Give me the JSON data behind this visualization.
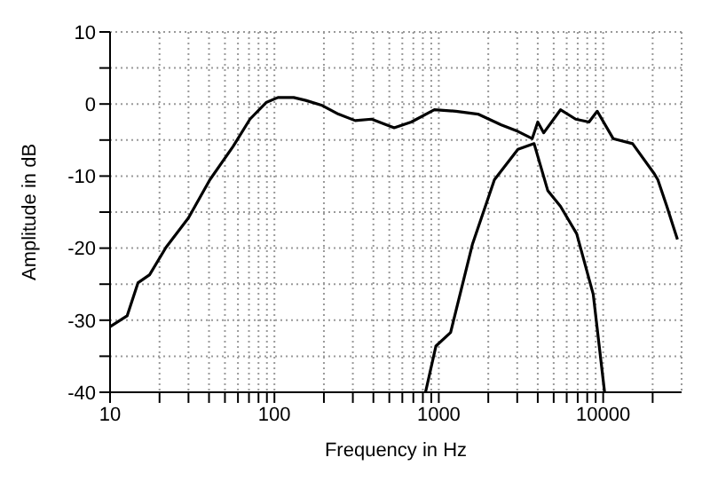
{
  "chart_data": {
    "type": "line",
    "xlabel": "Frequency in Hz",
    "ylabel": "Amplitude in dB",
    "log": "x",
    "grid": true,
    "marker": "none",
    "line_style": "solid",
    "xlim": [
      10,
      30000
    ],
    "ylim": [
      -40,
      10
    ],
    "xticks": [
      10,
      {
        "value": 20,
        "label": null
      },
      {
        "value": 30,
        "label": null
      },
      {
        "value": 40,
        "label": null
      },
      {
        "value": 50,
        "label": null
      },
      {
        "value": 60,
        "label": null
      },
      {
        "value": 70,
        "label": null
      },
      {
        "value": 80,
        "label": null
      },
      {
        "value": 90,
        "label": null
      },
      100,
      {
        "value": 200,
        "label": null
      },
      {
        "value": 300,
        "label": null
      },
      {
        "value": 400,
        "label": null
      },
      {
        "value": 500,
        "label": null
      },
      {
        "value": 600,
        "label": null
      },
      {
        "value": 700,
        "label": null
      },
      {
        "value": 800,
        "label": null
      },
      {
        "value": 900,
        "label": null
      },
      1000,
      {
        "value": 2000,
        "label": null
      },
      {
        "value": 3000,
        "label": null
      },
      {
        "value": 4000,
        "label": null
      },
      {
        "value": 5000,
        "label": null
      },
      {
        "value": 6000,
        "label": null
      },
      {
        "value": 7000,
        "label": null
      },
      {
        "value": 8000,
        "label": null
      },
      {
        "value": 9000,
        "label": null
      },
      10000,
      {
        "value": 20000,
        "label": null
      }
    ],
    "yticks": [
      -40,
      {
        "value": -35,
        "label": null
      },
      -30,
      {
        "value": -25,
        "label": null
      },
      -20,
      {
        "value": -15,
        "label": null
      },
      -10,
      {
        "value": -5,
        "label": null
      },
      0,
      {
        "value": 5,
        "label": null
      },
      10
    ],
    "series": [
      {
        "color": "#000000",
        "x": [
          10,
          12.7,
          14.8,
          17.4,
          21.9,
          30,
          40.5,
          56,
          71,
          89,
          105,
          131,
          155,
          195,
          245,
          310,
          390,
          535,
          680,
          940,
          1270,
          1730,
          2400,
          3030,
          3700,
          4000,
          4350,
          5500,
          6800,
          8200,
          9200,
          11500,
          15100,
          20500,
          21500,
          24400,
          28300
        ],
        "values": [
          -30.9,
          -29.4,
          -24.8,
          -23.7,
          -19.9,
          -15.8,
          -10.5,
          -5.9,
          -2.1,
          0.2,
          0.9,
          0.9,
          0.5,
          -0.2,
          -1.4,
          -2.3,
          -2.1,
          -3.3,
          -2.5,
          -0.8,
          -1,
          -1.4,
          -2.9,
          -3.8,
          -4.8,
          -2.5,
          -4,
          -0.8,
          -2.1,
          -2.5,
          -1,
          -4.8,
          -5.5,
          -9.7,
          -10.5,
          -14.2,
          -18.8
        ]
      },
      {
        "color": "#000000",
        "x": [
          830,
          960,
          1180,
          1600,
          2180,
          3030,
          3800,
          4600,
          5500,
          6900,
          8700,
          10200
        ],
        "values": [
          -40,
          -33.6,
          -31.7,
          -19.5,
          -10.5,
          -6.3,
          -5.5,
          -12,
          -14.2,
          -18,
          -26.4,
          -40
        ]
      }
    ]
  }
}
